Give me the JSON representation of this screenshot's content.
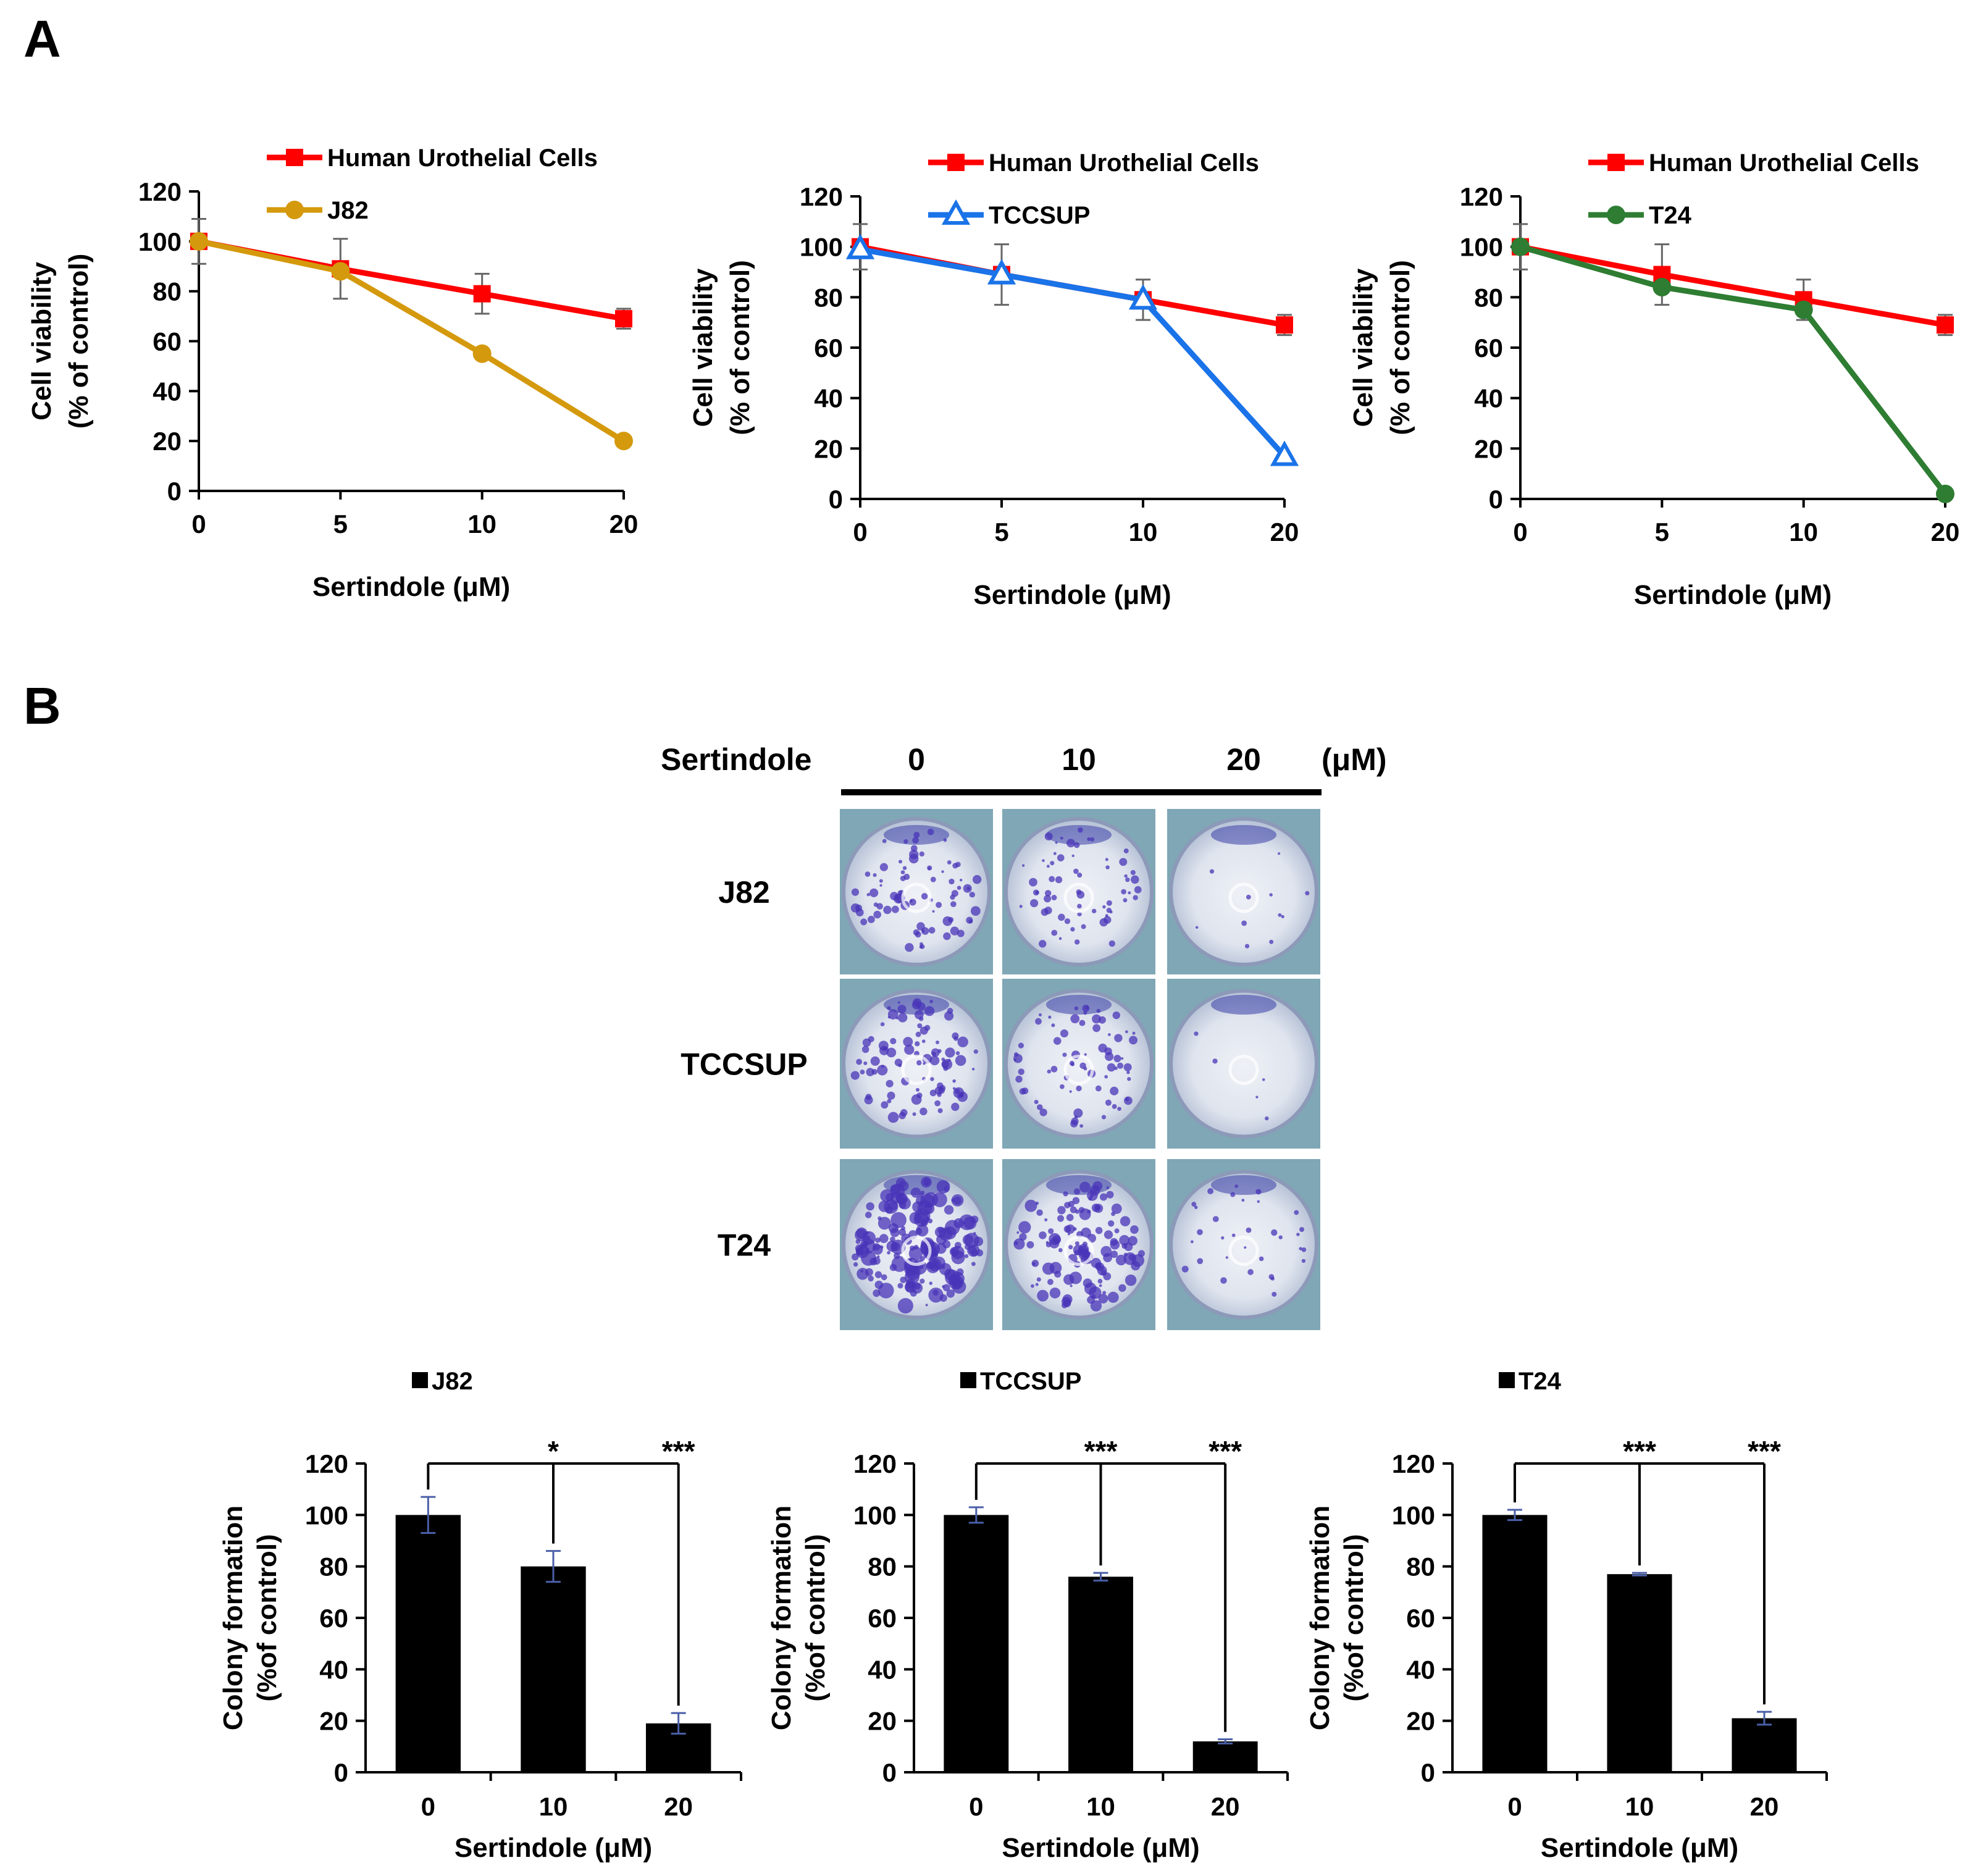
{
  "figure": {
    "panel_a_label": "A",
    "panel_b_label": "B"
  },
  "colors": {
    "huc": "#ff0000",
    "j82": "#d4990c",
    "tccsup": "#1a73e8",
    "t24": "#2e7d32",
    "bar": "#000000",
    "error_bar": "#4a5fa8"
  },
  "plate_grid": {
    "header_label": "Sertindole",
    "concentrations": [
      "0",
      "10",
      "20"
    ],
    "unit": "(μM)",
    "rows": [
      {
        "label": "J82",
        "colony_density": [
          0.45,
          0.35,
          0.06
        ]
      },
      {
        "label": "TCCSUP",
        "colony_density": [
          0.55,
          0.4,
          0.03
        ]
      },
      {
        "label": "T24",
        "colony_density": [
          1.0,
          0.7,
          0.18
        ]
      }
    ]
  },
  "chart_data": [
    {
      "type": "line",
      "x": [
        0,
        5,
        10,
        20
      ],
      "xlabel": "Sertindole (μM)",
      "ylabel_line1": "Cell viability",
      "ylabel_line2": "(% of control)",
      "ylim": [
        0,
        120
      ],
      "yticks": [
        0,
        20,
        40,
        60,
        80,
        100,
        120
      ],
      "grid": false,
      "legend_position": "top",
      "series": [
        {
          "name": "Human Urothelial Cells",
          "marker": "square",
          "color": "#ff0000",
          "values": [
            100,
            89,
            79,
            69
          ],
          "errors": [
            9,
            12,
            8,
            4
          ]
        },
        {
          "name": "J82",
          "marker": "circle",
          "color": "#d4990c",
          "values": [
            100,
            88,
            55,
            20
          ],
          "errors": [
            0,
            0,
            0,
            0
          ]
        }
      ]
    },
    {
      "type": "line",
      "x": [
        0,
        5,
        10,
        20
      ],
      "xlabel": "Sertindole (μM)",
      "ylabel_line1": "Cell viability",
      "ylabel_line2": "(% of control)",
      "ylim": [
        0,
        120
      ],
      "yticks": [
        0,
        20,
        40,
        60,
        80,
        100,
        120
      ],
      "grid": false,
      "legend_position": "top",
      "series": [
        {
          "name": "Human Urothelial Cells",
          "marker": "square",
          "color": "#ff0000",
          "values": [
            100,
            89,
            79,
            69
          ],
          "errors": [
            9,
            12,
            8,
            4
          ]
        },
        {
          "name": "TCCSUP",
          "marker": "triangle",
          "color": "#1a73e8",
          "values": [
            99,
            89,
            79,
            17
          ],
          "errors": [
            0,
            0,
            0,
            0
          ]
        }
      ]
    },
    {
      "type": "line",
      "x": [
        0,
        5,
        10,
        20
      ],
      "xlabel": "Sertindole (μM)",
      "ylabel_line1": "Cell viability",
      "ylabel_line2": "(% of control)",
      "ylim": [
        0,
        120
      ],
      "yticks": [
        0,
        20,
        40,
        60,
        80,
        100,
        120
      ],
      "grid": false,
      "legend_position": "top",
      "series": [
        {
          "name": "Human Urothelial Cells",
          "marker": "square",
          "color": "#ff0000",
          "values": [
            100,
            89,
            79,
            69
          ],
          "errors": [
            9,
            12,
            8,
            4
          ]
        },
        {
          "name": "T24",
          "marker": "circle",
          "color": "#2e7d32",
          "values": [
            100,
            84,
            75,
            2
          ],
          "errors": [
            0,
            0,
            0,
            0
          ]
        }
      ]
    },
    {
      "type": "bar",
      "legend": "J82",
      "categories": [
        "0",
        "10",
        "20"
      ],
      "values": [
        100,
        80,
        19
      ],
      "errors": [
        7,
        6,
        4
      ],
      "significance": [
        "*",
        "***"
      ],
      "xlabel": "Sertindole (μM)",
      "ylabel_line1": "Colony formation",
      "ylabel_line2": "(%of control)",
      "ylim": [
        0,
        120
      ],
      "yticks": [
        0,
        20,
        40,
        60,
        80,
        100,
        120
      ]
    },
    {
      "type": "bar",
      "legend": "TCCSUP",
      "categories": [
        "0",
        "10",
        "20"
      ],
      "values": [
        100,
        76,
        12
      ],
      "errors": [
        3,
        1.5,
        0.8
      ],
      "significance": [
        "***",
        "***"
      ],
      "xlabel": "Sertindole (μM)",
      "ylabel_line1": "Colony formation",
      "ylabel_line2": "(%of control)",
      "ylim": [
        0,
        120
      ],
      "yticks": [
        0,
        20,
        40,
        60,
        80,
        100,
        120
      ]
    },
    {
      "type": "bar",
      "legend": "T24",
      "categories": [
        "0",
        "10",
        "20"
      ],
      "values": [
        100,
        77,
        21
      ],
      "errors": [
        2,
        0.5,
        2.5
      ],
      "significance": [
        "***",
        "***"
      ],
      "xlabel": "Sertindole (μM)",
      "ylabel_line1": "Colony formation",
      "ylabel_line2": "(%of control)",
      "ylim": [
        0,
        120
      ],
      "yticks": [
        0,
        20,
        40,
        60,
        80,
        100,
        120
      ]
    }
  ]
}
